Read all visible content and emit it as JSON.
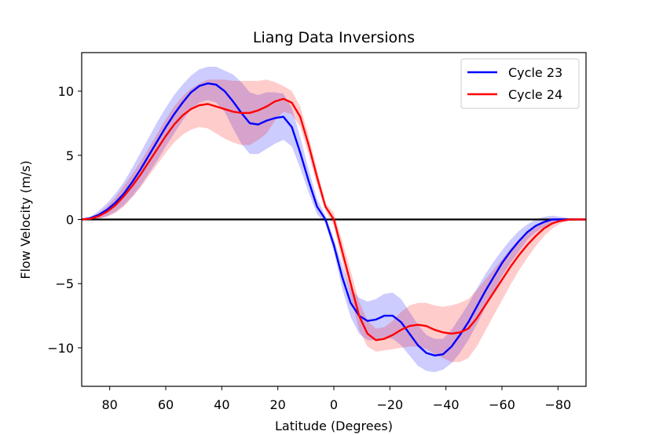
{
  "chart_data": {
    "type": "line",
    "title": "Liang Data Inversions",
    "xlabel": "Latitude (Degrees)",
    "ylabel": "Flow Velocity (m/s)",
    "xlim": [
      90,
      -90
    ],
    "ylim": [
      -13,
      13
    ],
    "x_ticks": [
      80,
      60,
      40,
      20,
      0,
      -20,
      -40,
      -60,
      -80
    ],
    "x_tick_labels": [
      "80",
      "60",
      "40",
      "20",
      "0",
      "−20",
      "−40",
      "−60",
      "−80"
    ],
    "y_ticks": [
      10,
      5,
      0,
      -5,
      -10
    ],
    "y_tick_labels": [
      "10",
      "5",
      "0",
      "−5",
      "−10"
    ],
    "grid": false,
    "legend_position": "top-right",
    "zero_line": true,
    "series": [
      {
        "name": "Cycle 23",
        "color": "#0000ff",
        "band_color": "#0000ff",
        "x": [
          90,
          87,
          84,
          81,
          78,
          75,
          72,
          69,
          66,
          63,
          60,
          57,
          54,
          51,
          48,
          45,
          42,
          39,
          36,
          33,
          30,
          27,
          24,
          21,
          18,
          15,
          12,
          9,
          6,
          3,
          0,
          -3,
          -6,
          -9,
          -12,
          -15,
          -18,
          -21,
          -24,
          -27,
          -30,
          -33,
          -36,
          -39,
          -42,
          -45,
          -48,
          -51,
          -54,
          -57,
          -60,
          -63,
          -66,
          -69,
          -72,
          -75,
          -78,
          -81,
          -84,
          -87,
          -90
        ],
        "y": [
          0,
          0.1,
          0.35,
          0.75,
          1.3,
          2.0,
          2.9,
          3.9,
          5.0,
          6.1,
          7.2,
          8.2,
          9.1,
          9.9,
          10.4,
          10.6,
          10.5,
          10.0,
          9.2,
          8.3,
          7.5,
          7.4,
          7.7,
          7.9,
          8.0,
          7.2,
          5.2,
          3.0,
          1.0,
          0,
          -2.0,
          -4.5,
          -6.5,
          -7.5,
          -7.9,
          -7.8,
          -7.5,
          -7.5,
          -8.0,
          -8.9,
          -9.8,
          -10.4,
          -10.6,
          -10.5,
          -9.9,
          -9.0,
          -8.0,
          -6.8,
          -5.6,
          -4.5,
          -3.4,
          -2.5,
          -1.7,
          -1.0,
          -0.5,
          -0.2,
          0,
          0,
          0,
          0,
          0
        ],
        "band_half_width": [
          0,
          0.1,
          0.3,
          0.5,
          0.7,
          0.9,
          1.1,
          1.3,
          1.4,
          1.5,
          1.5,
          1.5,
          1.4,
          1.3,
          1.3,
          1.3,
          1.4,
          1.6,
          2.1,
          2.4,
          2.4,
          2.3,
          2.2,
          2.0,
          1.8,
          1.5,
          1.2,
          0.9,
          0.6,
          0.3,
          0.5,
          0.9,
          1.1,
          1.4,
          1.5,
          1.6,
          1.7,
          1.8,
          1.8,
          1.7,
          1.6,
          1.4,
          1.3,
          1.2,
          1.3,
          1.4,
          1.4,
          1.4,
          1.3,
          1.2,
          1.0,
          0.9,
          0.8,
          0.6,
          0.5,
          0.4,
          0.3,
          0.2,
          0.1,
          0.05,
          0
        ]
      },
      {
        "name": "Cycle 24",
        "color": "#ff0000",
        "band_color": "#ff0000",
        "x": [
          90,
          87,
          84,
          81,
          78,
          75,
          72,
          69,
          66,
          63,
          60,
          57,
          54,
          51,
          48,
          45,
          42,
          39,
          36,
          33,
          30,
          27,
          24,
          21,
          18,
          15,
          12,
          9,
          6,
          3,
          0,
          -3,
          -6,
          -9,
          -12,
          -15,
          -18,
          -21,
          -24,
          -27,
          -30,
          -33,
          -36,
          -39,
          -42,
          -45,
          -48,
          -51,
          -54,
          -57,
          -60,
          -63,
          -66,
          -69,
          -72,
          -75,
          -78,
          -81,
          -84,
          -87,
          -90
        ],
        "y": [
          0,
          0.05,
          0.25,
          0.6,
          1.1,
          1.8,
          2.6,
          3.5,
          4.5,
          5.5,
          6.5,
          7.4,
          8.1,
          8.6,
          8.9,
          9.0,
          8.8,
          8.6,
          8.4,
          8.3,
          8.3,
          8.5,
          8.8,
          9.2,
          9.4,
          9.1,
          8.0,
          5.8,
          3.3,
          1.0,
          0,
          -2.5,
          -5.0,
          -7.5,
          -8.9,
          -9.4,
          -9.3,
          -9.0,
          -8.6,
          -8.3,
          -8.2,
          -8.3,
          -8.6,
          -8.8,
          -8.9,
          -8.8,
          -8.5,
          -7.7,
          -6.7,
          -5.7,
          -4.7,
          -3.7,
          -2.8,
          -2.0,
          -1.3,
          -0.7,
          -0.3,
          -0.1,
          0,
          0,
          0
        ],
        "band_half_width": [
          0,
          0.05,
          0.2,
          0.4,
          0.6,
          0.8,
          0.9,
          1.0,
          1.1,
          1.2,
          1.3,
          1.4,
          1.5,
          1.6,
          1.7,
          1.9,
          2.1,
          2.3,
          2.4,
          2.5,
          2.5,
          2.3,
          2.1,
          1.5,
          1.0,
          0.9,
          0.8,
          0.7,
          0.6,
          0.3,
          0.5,
          0.8,
          1.0,
          1.1,
          1.0,
          0.9,
          0.9,
          1.1,
          1.4,
          1.6,
          1.7,
          1.8,
          1.9,
          2.0,
          2.2,
          2.3,
          2.3,
          2.2,
          2.0,
          1.8,
          1.6,
          1.4,
          1.2,
          1.0,
          0.8,
          0.6,
          0.4,
          0.2,
          0.1,
          0.05,
          0
        ]
      }
    ]
  }
}
